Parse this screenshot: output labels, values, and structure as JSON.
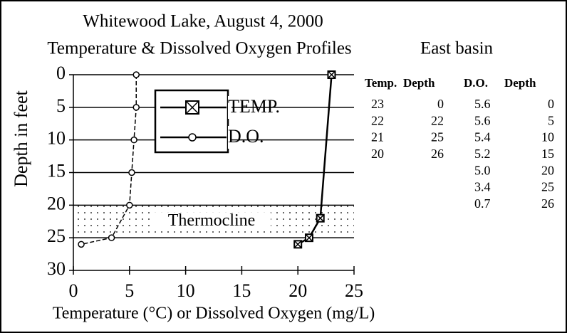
{
  "chart_data": {
    "type": "line",
    "title": "Whitewood Lake, August 4, 2000",
    "subtitle": "Temperature & Dissolved Oxygen Profiles",
    "location": "East basin",
    "xlabel": "Temperature (°C) or Dissolved Oxygen (mg/L)",
    "ylabel": "Depth in feet",
    "xlim": [
      0,
      25
    ],
    "xticks": [
      0,
      5,
      10,
      15,
      20,
      25
    ],
    "ylim": [
      0,
      30
    ],
    "yticks": [
      0,
      5,
      10,
      15,
      20,
      25,
      30
    ],
    "y_inverted": true,
    "grid": true,
    "series": [
      {
        "name": "TEMP.",
        "color": "#000000",
        "marker": "square-x",
        "dashed": false,
        "x": [
          23,
          22,
          21,
          20
        ],
        "values": [
          0,
          22,
          25,
          26
        ]
      },
      {
        "name": "D.O.",
        "color": "#000000",
        "marker": "circle",
        "dashed": true,
        "x": [
          5.6,
          5.6,
          5.4,
          5.2,
          5.0,
          3.4,
          0.7
        ],
        "values": [
          0,
          5,
          10,
          15,
          20,
          25,
          26
        ]
      }
    ],
    "band": {
      "text": "Thermocline",
      "y_range": [
        20,
        25
      ]
    }
  },
  "table": {
    "temperature": {
      "columns": [
        "Temp.",
        "Depth"
      ],
      "rows": [
        [
          "23",
          "0"
        ],
        [
          "22",
          "22"
        ],
        [
          "21",
          "25"
        ],
        [
          "20",
          "26"
        ]
      ]
    },
    "oxygen": {
      "columns": [
        "D.O.",
        "Depth"
      ],
      "rows": [
        [
          "5.6",
          "0"
        ],
        [
          "5.6",
          "5"
        ],
        [
          "5.4",
          "10"
        ],
        [
          "5.2",
          "15"
        ],
        [
          "5.0",
          "20"
        ],
        [
          "3.4",
          "25"
        ],
        [
          "0.7",
          "26"
        ]
      ]
    }
  }
}
